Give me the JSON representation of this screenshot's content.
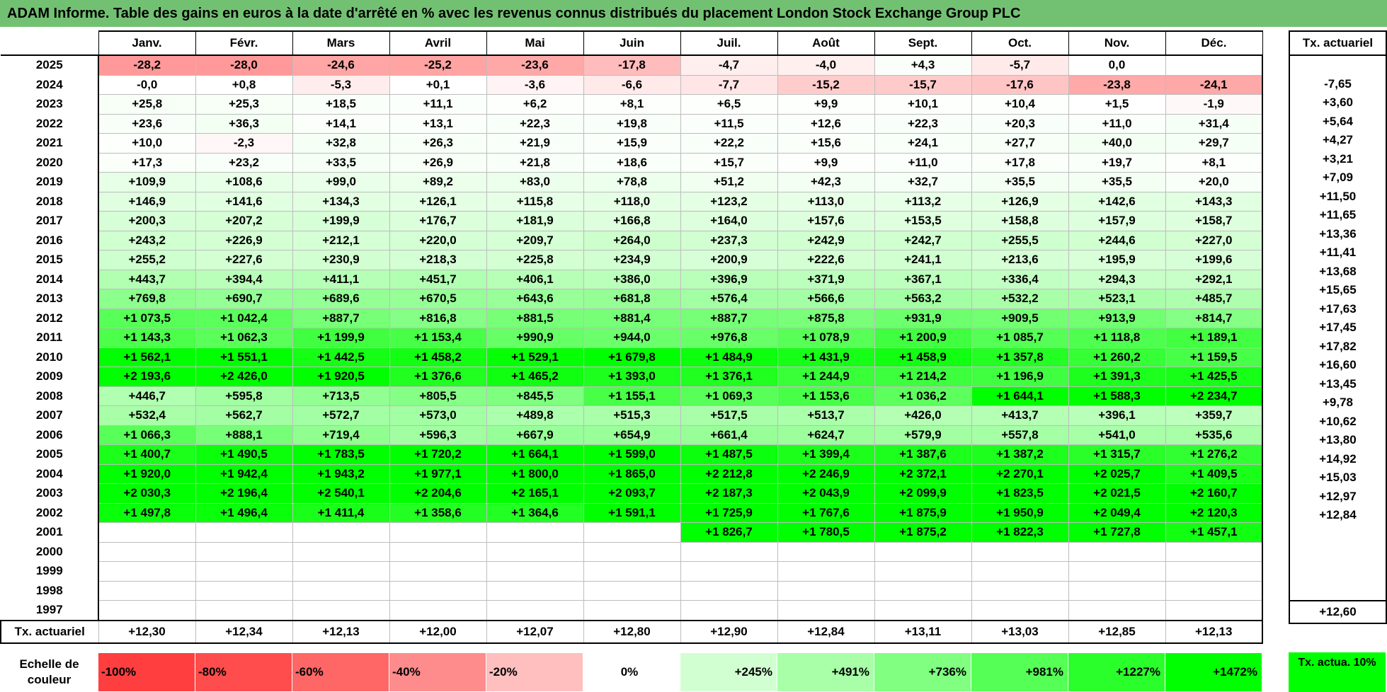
{
  "title": "ADAM Informe. Table des gains en euros à la date d'arrêté en % avec les revenus connus distribués du placement London Stock Exchange Group PLC",
  "months": [
    "Janv.",
    "Févr.",
    "Mars",
    "Avril",
    "Mai",
    "Juin",
    "Juil.",
    "Août",
    "Sept.",
    "Oct.",
    "Nov.",
    "Déc."
  ],
  "tx_header": "Tx. actuariel",
  "rows": [
    {
      "year": "2025",
      "cells": [
        "-28,2",
        "-28,0",
        "-24,6",
        "-25,2",
        "-23,6",
        "-17,8",
        "-4,7",
        "-4,0",
        "+4,3",
        "-5,7",
        "0,0",
        ""
      ],
      "colors": [
        "#ff9999",
        "#ff9999",
        "#ffa5a5",
        "#ffa3a3",
        "#ffa8a8",
        "#ffbcbc",
        "#ffeeee",
        "#ffefef",
        "#fbfffb",
        "#ffeaea",
        "#ffffff",
        "#ffffff"
      ],
      "tx": ""
    },
    {
      "year": "2024",
      "cells": [
        "-0,0",
        "+0,8",
        "-5,3",
        "+0,1",
        "-3,6",
        "-6,6",
        "-7,7",
        "-15,2",
        "-15,7",
        "-17,6",
        "-23,8",
        "-24,1"
      ],
      "colors": [
        "#ffffff",
        "#ffffff",
        "#ffeded",
        "#ffffff",
        "#fff3f3",
        "#ffe9e9",
        "#ffe5e5",
        "#ffcccc",
        "#ffcaca",
        "#ffc4c4",
        "#ffa9a9",
        "#ffa8a8"
      ],
      "tx": "-7,65"
    },
    {
      "year": "2023",
      "cells": [
        "+25,8",
        "+25,3",
        "+18,5",
        "+11,1",
        "+6,2",
        "+8,1",
        "+6,5",
        "+9,9",
        "+10,1",
        "+10,4",
        "+1,5",
        "-1,9"
      ],
      "colors": [
        "#f7fff7",
        "#f7fff7",
        "#f9fff9",
        "#fbfffb",
        "#fdfffd",
        "#fcfffc",
        "#fdfffd",
        "#fcfffc",
        "#fcfffc",
        "#fcfffc",
        "#ffffff",
        "#fff8f8"
      ],
      "tx": "+3,60"
    },
    {
      "year": "2022",
      "cells": [
        "+23,6",
        "+36,3",
        "+14,1",
        "+13,1",
        "+22,3",
        "+19,8",
        "+11,5",
        "+12,6",
        "+22,3",
        "+20,3",
        "+11,0",
        "+31,4"
      ],
      "colors": [
        "#f8fff8",
        "#f4fff4",
        "#fafffa",
        "#fbfffb",
        "#f8fff8",
        "#f8fff8",
        "#fbfffb",
        "#fbfffb",
        "#f8fff8",
        "#f8fff8",
        "#fbfffb",
        "#f6fff6"
      ],
      "tx": "+5,64"
    },
    {
      "year": "2021",
      "cells": [
        "+10,0",
        "-2,3",
        "+32,8",
        "+26,3",
        "+21,9",
        "+15,9",
        "+22,2",
        "+15,6",
        "+24,1",
        "+27,7",
        "+40,0",
        "+29,7"
      ],
      "colors": [
        "#fcfffc",
        "#fff7f7",
        "#f5fff5",
        "#f7fff7",
        "#f8fff8",
        "#fafffa",
        "#f8fff8",
        "#fafffa",
        "#f8fff8",
        "#f7fff7",
        "#f3fff3",
        "#f6fff6"
      ],
      "tx": "+4,27"
    },
    {
      "year": "2020",
      "cells": [
        "+17,3",
        "+23,2",
        "+33,5",
        "+26,9",
        "+21,8",
        "+18,6",
        "+15,7",
        "+9,9",
        "+11,0",
        "+17,8",
        "+19,7",
        "+8,1"
      ],
      "colors": [
        "#fafffa",
        "#f8fff8",
        "#f5fff5",
        "#f7fff7",
        "#f8fff8",
        "#f9fff9",
        "#fafffa",
        "#fcfffc",
        "#fbfffb",
        "#fafffa",
        "#f9fff9",
        "#fcfffc"
      ],
      "tx": "+3,21"
    },
    {
      "year": "2019",
      "cells": [
        "+109,9",
        "+108,6",
        "+99,0",
        "+89,2",
        "+83,0",
        "+78,8",
        "+51,2",
        "+42,3",
        "+32,7",
        "+35,5",
        "+35,5",
        "+20,0"
      ],
      "colors": [
        "#e7ffe7",
        "#e7ffe7",
        "#e9ffe9",
        "#ebffeb",
        "#ecffec",
        "#edffed",
        "#f1fff1",
        "#f3fff3",
        "#f5fff5",
        "#f4fff4",
        "#f4fff4",
        "#f8fff8"
      ],
      "tx": "+7,09"
    },
    {
      "year": "2018",
      "cells": [
        "+146,9",
        "+141,6",
        "+134,3",
        "+126,1",
        "+115,8",
        "+118,0",
        "+123,2",
        "+113,0",
        "+113,2",
        "+126,9",
        "+142,6",
        "+143,3"
      ],
      "colors": [
        "#e0ffe0",
        "#e1ffe1",
        "#e2ffe2",
        "#e4ffe4",
        "#e6ffe6",
        "#e5ffe5",
        "#e4ffe4",
        "#e6ffe6",
        "#e6ffe6",
        "#e4ffe4",
        "#e1ffe1",
        "#e1ffe1"
      ],
      "tx": "+11,50"
    },
    {
      "year": "2017",
      "cells": [
        "+200,3",
        "+207,2",
        "+199,9",
        "+176,7",
        "+181,9",
        "+166,8",
        "+164,0",
        "+157,6",
        "+153,5",
        "+158,8",
        "+157,9",
        "+158,7"
      ],
      "colors": [
        "#d7ffd7",
        "#d6ffd6",
        "#d7ffd7",
        "#dbffdb",
        "#daffda",
        "#ddffdd",
        "#ddffdd",
        "#deffde",
        "#dfffdf",
        "#deffde",
        "#deffde",
        "#deffde"
      ],
      "tx": "+11,65"
    },
    {
      "year": "2016",
      "cells": [
        "+243,2",
        "+226,9",
        "+212,1",
        "+220,0",
        "+209,7",
        "+264,0",
        "+237,3",
        "+242,9",
        "+242,7",
        "+255,5",
        "+244,6",
        "+227,0"
      ],
      "colors": [
        "#d0ffd0",
        "#d3ffd3",
        "#d5ffd5",
        "#d4ffd4",
        "#d5ffd5",
        "#ccffcc",
        "#d1ffd1",
        "#d0ffd0",
        "#d0ffd0",
        "#ceffce",
        "#d0ffd0",
        "#d3ffd3"
      ],
      "tx": "+13,36"
    },
    {
      "year": "2015",
      "cells": [
        "+255,2",
        "+227,6",
        "+230,9",
        "+218,3",
        "+225,8",
        "+234,9",
        "+200,9",
        "+222,6",
        "+241,1",
        "+213,6",
        "+195,9",
        "+199,6"
      ],
      "colors": [
        "#ceffce",
        "#d3ffd3",
        "#d2ffd2",
        "#d4ffd4",
        "#d3ffd3",
        "#d1ffd1",
        "#d7ffd7",
        "#d3ffd3",
        "#d0ffd0",
        "#d5ffd5",
        "#d8ffd8",
        "#d7ffd7"
      ],
      "tx": "+11,41"
    },
    {
      "year": "2014",
      "cells": [
        "+443,7",
        "+394,4",
        "+411,1",
        "+451,7",
        "+406,1",
        "+386,0",
        "+396,9",
        "+371,9",
        "+367,1",
        "+336,4",
        "+294,3",
        "+292,1"
      ],
      "colors": [
        "#b2ffb2",
        "#b9ffb9",
        "#b6ffb6",
        "#b1ffb1",
        "#b7ffb7",
        "#baffba",
        "#b9ffb9",
        "#bcffbc",
        "#bdffbd",
        "#c2ffc2",
        "#c8ffc8",
        "#c8ffc8"
      ],
      "tx": "+13,68"
    },
    {
      "year": "2013",
      "cells": [
        "+769,8",
        "+690,7",
        "+689,6",
        "+670,5",
        "+643,6",
        "+681,8",
        "+576,4",
        "+566,6",
        "+563,2",
        "+532,2",
        "+523,1",
        "+485,7"
      ],
      "colors": [
        "#8cff8c",
        "#94ff94",
        "#94ff94",
        "#97ff97",
        "#99ff99",
        "#95ff95",
        "#a3ffa3",
        "#a4ffa4",
        "#a4ffa4",
        "#a8ffa8",
        "#a9ffa9",
        "#adffad"
      ],
      "tx": "+15,65"
    },
    {
      "year": "2012",
      "cells": [
        "+1 073,5",
        "+1 042,4",
        "+887,7",
        "+816,8",
        "+881,5",
        "+881,4",
        "+887,7",
        "+875,8",
        "+931,9",
        "+909,5",
        "+913,9",
        "+814,7"
      ],
      "colors": [
        "#58ff58",
        "#5bff5b",
        "#77ff77",
        "#85ff85",
        "#78ff78",
        "#78ff78",
        "#77ff77",
        "#79ff79",
        "#6eff6e",
        "#72ff72",
        "#72ff72",
        "#85ff85"
      ],
      "tx": "+17,63"
    },
    {
      "year": "2011",
      "cells": [
        "+1 143,3",
        "+1 062,3",
        "+1 199,9",
        "+1 153,4",
        "+990,9",
        "+944,0",
        "+976,8",
        "+1 078,9",
        "+1 200,9",
        "+1 085,7",
        "+1 118,8",
        "+1 189,1"
      ],
      "colors": [
        "#4bff4b",
        "#5aff5a",
        "#40ff40",
        "#48ff48",
        "#66ff66",
        "#6cff6c",
        "#68ff68",
        "#57ff57",
        "#40ff40",
        "#55ff55",
        "#4fff4f",
        "#42ff42"
      ],
      "tx": "+17,45"
    },
    {
      "year": "2010",
      "cells": [
        "+1 562,1",
        "+1 551,1",
        "+1 442,5",
        "+1 458,2",
        "+1 529,1",
        "+1 679,8",
        "+1 484,9",
        "+1 431,9",
        "+1 458,9",
        "+1 357,8",
        "+1 260,2",
        "+1 159,5"
      ],
      "colors": [
        "#00ff00",
        "#00ff00",
        "#14ff14",
        "#12ff12",
        "#05ff05",
        "#00ff00",
        "#0cff0c",
        "#16ff16",
        "#11ff11",
        "#23ff23",
        "#35ff35",
        "#47ff47"
      ],
      "tx": "+17,82"
    },
    {
      "year": "2009",
      "cells": [
        "+2 193,6",
        "+2 426,0",
        "+1 920,5",
        "+1 376,6",
        "+1 465,2",
        "+1 393,0",
        "+1 376,1",
        "+1 244,9",
        "+1 214,2",
        "+1 196,9",
        "+1 391,3",
        "+1 425,5"
      ],
      "colors": [
        "#00ff00",
        "#00ff00",
        "#00ff00",
        "#20ff20",
        "#10ff10",
        "#1dff1d",
        "#20ff20",
        "#38ff38",
        "#3dff3d",
        "#40ff40",
        "#1dff1d",
        "#17ff17"
      ],
      "tx": "+16,60"
    },
    {
      "year": "2008",
      "cells": [
        "+446,7",
        "+595,8",
        "+713,5",
        "+805,5",
        "+845,5",
        "+1 155,1",
        "+1 069,3",
        "+1 153,6",
        "+1 036,2",
        "+1 644,1",
        "+1 588,3",
        "+2 234,7"
      ],
      "colors": [
        "#b1ffb1",
        "#a1ffa1",
        "#91ff91",
        "#86ff86",
        "#7fff7f",
        "#48ff48",
        "#58ff58",
        "#48ff48",
        "#5dff5d",
        "#00ff00",
        "#00ff00",
        "#00ff00"
      ],
      "tx": "+13,45"
    },
    {
      "year": "2007",
      "cells": [
        "+532,4",
        "+562,7",
        "+572,7",
        "+573,0",
        "+489,8",
        "+515,3",
        "+517,5",
        "+513,7",
        "+426,0",
        "+413,7",
        "+396,1",
        "+359,7"
      ],
      "colors": [
        "#a8ffa8",
        "#a4ffa4",
        "#a3ffa3",
        "#a3ffa3",
        "#acffac",
        "#aaffaa",
        "#a9ffa9",
        "#aaffaa",
        "#b4ffb4",
        "#b5ffb5",
        "#b9ffb9",
        "#bdffbd"
      ],
      "tx": "+9,78"
    },
    {
      "year": "2006",
      "cells": [
        "+1 066,3",
        "+888,1",
        "+719,4",
        "+596,3",
        "+667,9",
        "+654,9",
        "+661,4",
        "+624,7",
        "+579,9",
        "+557,8",
        "+541,0",
        "+535,6"
      ],
      "colors": [
        "#58ff58",
        "#77ff77",
        "#90ff90",
        "#a1ffa1",
        "#97ff97",
        "#99ff99",
        "#98ff98",
        "#9cff9c",
        "#a2ffa2",
        "#a5ffa5",
        "#a7ffa7",
        "#a8ffa8"
      ],
      "tx": "+10,62"
    },
    {
      "year": "2005",
      "cells": [
        "+1 400,7",
        "+1 490,5",
        "+1 783,5",
        "+1 720,2",
        "+1 664,1",
        "+1 599,0",
        "+1 487,5",
        "+1 399,4",
        "+1 387,6",
        "+1 387,2",
        "+1 315,7",
        "+1 276,2"
      ],
      "colors": [
        "#1bff1b",
        "#0bff0b",
        "#00ff00",
        "#00ff00",
        "#00ff00",
        "#00ff00",
        "#0cff0c",
        "#1bff1b",
        "#1dff1d",
        "#1dff1d",
        "#2aff2a",
        "#31ff31"
      ],
      "tx": "+13,80"
    },
    {
      "year": "2004",
      "cells": [
        "+1 920,0",
        "+1 942,4",
        "+1 943,2",
        "+1 977,1",
        "+1 800,0",
        "+1 865,0",
        "+2 212,8",
        "+2 246,9",
        "+2 372,1",
        "+2 270,1",
        "+2 025,7",
        "+1 409,5"
      ],
      "colors": [
        "#00ff00",
        "#00ff00",
        "#00ff00",
        "#00ff00",
        "#00ff00",
        "#00ff00",
        "#00ff00",
        "#00ff00",
        "#00ff00",
        "#00ff00",
        "#00ff00",
        "#1aff1a"
      ],
      "tx": "+14,92"
    },
    {
      "year": "2003",
      "cells": [
        "+2 030,3",
        "+2 196,4",
        "+2 540,1",
        "+2 204,6",
        "+2 165,1",
        "+2 093,7",
        "+2 187,3",
        "+2 043,9",
        "+2 099,9",
        "+1 823,5",
        "+2 021,5",
        "+2 160,7"
      ],
      "colors": [
        "#00ff00",
        "#00ff00",
        "#00ff00",
        "#00ff00",
        "#00ff00",
        "#00ff00",
        "#00ff00",
        "#00ff00",
        "#00ff00",
        "#00ff00",
        "#00ff00",
        "#00ff00"
      ],
      "tx": "+15,03"
    },
    {
      "year": "2002",
      "cells": [
        "+1 497,8",
        "+1 496,4",
        "+1 411,4",
        "+1 358,6",
        "+1 364,6",
        "+1 591,1",
        "+1 725,9",
        "+1 767,6",
        "+1 875,9",
        "+1 950,9",
        "+2 049,4",
        "+2 120,3"
      ],
      "colors": [
        "#0aff0a",
        "#0aff0a",
        "#1aff1a",
        "#23ff23",
        "#22ff22",
        "#00ff00",
        "#00ff00",
        "#00ff00",
        "#00ff00",
        "#00ff00",
        "#00ff00",
        "#00ff00"
      ],
      "tx": "+12,97"
    },
    {
      "year": "2001",
      "cells": [
        "",
        "",
        "",
        "",
        "",
        "",
        "+1 826,7",
        "+1 780,5",
        "+1 875,2",
        "+1 822,3",
        "+1 727,8",
        "+1 457,1"
      ],
      "colors": [
        "#ffffff",
        "#ffffff",
        "#ffffff",
        "#ffffff",
        "#ffffff",
        "#ffffff",
        "#00ff00",
        "#00ff00",
        "#00ff00",
        "#00ff00",
        "#00ff00",
        "#12ff12"
      ],
      "tx": "+12,84"
    },
    {
      "year": "2000",
      "cells": [
        "",
        "",
        "",
        "",
        "",
        "",
        "",
        "",
        "",
        "",
        "",
        ""
      ],
      "colors": [
        "#ffffff",
        "#ffffff",
        "#ffffff",
        "#ffffff",
        "#ffffff",
        "#ffffff",
        "#ffffff",
        "#ffffff",
        "#ffffff",
        "#ffffff",
        "#ffffff",
        "#ffffff"
      ],
      "tx": ""
    },
    {
      "year": "1999",
      "cells": [
        "",
        "",
        "",
        "",
        "",
        "",
        "",
        "",
        "",
        "",
        "",
        ""
      ],
      "colors": [
        "#ffffff",
        "#ffffff",
        "#ffffff",
        "#ffffff",
        "#ffffff",
        "#ffffff",
        "#ffffff",
        "#ffffff",
        "#ffffff",
        "#ffffff",
        "#ffffff",
        "#ffffff"
      ],
      "tx": ""
    },
    {
      "year": "1998",
      "cells": [
        "",
        "",
        "",
        "",
        "",
        "",
        "",
        "",
        "",
        "",
        "",
        ""
      ],
      "colors": [
        "#ffffff",
        "#ffffff",
        "#ffffff",
        "#ffffff",
        "#ffffff",
        "#ffffff",
        "#ffffff",
        "#ffffff",
        "#ffffff",
        "#ffffff",
        "#ffffff",
        "#ffffff"
      ],
      "tx": ""
    },
    {
      "year": "1997",
      "cells": [
        "",
        "",
        "",
        "",
        "",
        "",
        "",
        "",
        "",
        "",
        "",
        ""
      ],
      "colors": [
        "#ffffff",
        "#ffffff",
        "#ffffff",
        "#ffffff",
        "#ffffff",
        "#ffffff",
        "#ffffff",
        "#ffffff",
        "#ffffff",
        "#ffffff",
        "#ffffff",
        "#ffffff"
      ],
      "tx": ""
    }
  ],
  "footer": {
    "label": "Tx. actuariel",
    "values": [
      "+12,30",
      "+12,34",
      "+12,13",
      "+12,00",
      "+12,07",
      "+12,80",
      "+12,90",
      "+12,84",
      "+13,11",
      "+13,03",
      "+12,85",
      "+12,13"
    ],
    "total": "+12,60"
  },
  "scale": {
    "label": "Echelle de couleur",
    "steps": [
      {
        "text": "-100%",
        "color": "#ff3f3f",
        "kind": "neg"
      },
      {
        "text": "-80%",
        "color": "#ff4d4d",
        "kind": "neg"
      },
      {
        "text": "-60%",
        "color": "#ff6666",
        "kind": "neg"
      },
      {
        "text": "-40%",
        "color": "#ff8c8c",
        "kind": "neg"
      },
      {
        "text": "-20%",
        "color": "#ffbfbf",
        "kind": "neg"
      },
      {
        "text": "0%",
        "color": "#ffffff",
        "kind": "zero"
      },
      {
        "text": "+245%",
        "color": "#d2ffd2",
        "kind": "pos"
      },
      {
        "text": "+491%",
        "color": "#a8ffa8",
        "kind": "pos"
      },
      {
        "text": "+736%",
        "color": "#80ff80",
        "kind": "pos"
      },
      {
        "text": "+981%",
        "color": "#55ff55",
        "kind": "pos"
      },
      {
        "text": "+1227%",
        "color": "#2bff2b",
        "kind": "pos"
      },
      {
        "text": "+1472%",
        "color": "#00ff00",
        "kind": "pos"
      }
    ],
    "tx_legend": "Tx. actua. 10%",
    "tx_legend_color": "#00ff00"
  },
  "title_bar_color": "#72c172"
}
